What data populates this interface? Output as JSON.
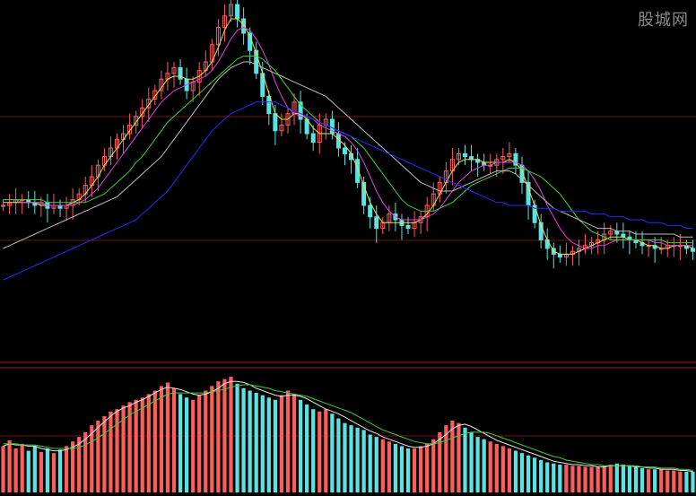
{
  "watermark": "股城网",
  "colors": {
    "background": "#000000",
    "up": "#ff5c5c",
    "down": "#59e3e3",
    "ma_white": "#e8e8e8",
    "ma_yellow": "#e8e04a",
    "ma_magenta": "#e040e0",
    "ma_green": "#3fcf3f",
    "ma_gray": "#bdbdbd",
    "ma_blue": "#2a2aff",
    "grid": "#7a1010"
  },
  "chart_data": [
    {
      "type": "line",
      "panel": "price",
      "grid": true,
      "n": 110,
      "series": [
        {
          "key": "close",
          "color": "#e8e8e8",
          "values": [
            30,
            31,
            32,
            32,
            31,
            30,
            31,
            29,
            30,
            29,
            30,
            32,
            34,
            37,
            40,
            44,
            47,
            50,
            53,
            55,
            58,
            61,
            64,
            67,
            70,
            74,
            76,
            78,
            74,
            70,
            73,
            77,
            80,
            86,
            92,
            96,
            100,
            95,
            90,
            84,
            76,
            68,
            62,
            56,
            58,
            62,
            66,
            60,
            55,
            52,
            58,
            60,
            55,
            50,
            48,
            46,
            38,
            30,
            26,
            22,
            24,
            27,
            25,
            23,
            22,
            24,
            26,
            30,
            34,
            38,
            42,
            46,
            48,
            47,
            46,
            45,
            44,
            44,
            46,
            47,
            48,
            44,
            38,
            30,
            24,
            18,
            15,
            13,
            12,
            13,
            14,
            15,
            16,
            17,
            18,
            20,
            21,
            20,
            19,
            18,
            17,
            16,
            16,
            15,
            15,
            16,
            16,
            16,
            15,
            14
          ]
        },
        {
          "key": "ma5",
          "color": "#e8e04a",
          "values": [
            31,
            31,
            31,
            31,
            31,
            31,
            30,
            30,
            30,
            30,
            30,
            31,
            32,
            34,
            37,
            40,
            44,
            47,
            50,
            53,
            56,
            59,
            62,
            65,
            68,
            71,
            74,
            75,
            75,
            74,
            74,
            75,
            77,
            80,
            85,
            91,
            95,
            95,
            93,
            89,
            83,
            76,
            69,
            62,
            60,
            60,
            62,
            62,
            60,
            57,
            55,
            55,
            55,
            53,
            51,
            48,
            43,
            37,
            31,
            27,
            24,
            24,
            24,
            24,
            24,
            24,
            25,
            27,
            30,
            34,
            38,
            42,
            45,
            46,
            46,
            46,
            45,
            45,
            45,
            45,
            46,
            45,
            42,
            36,
            30,
            23,
            18,
            14,
            13,
            13,
            13,
            14,
            15,
            16,
            17,
            18,
            19,
            19,
            19,
            18,
            18,
            17,
            16,
            16,
            15,
            15,
            16,
            16,
            16,
            15
          ]
        },
        {
          "key": "ma10",
          "color": "#e040e0",
          "values": [
            32,
            32,
            32,
            31,
            31,
            31,
            31,
            30,
            30,
            30,
            30,
            30,
            31,
            32,
            34,
            36,
            39,
            42,
            45,
            48,
            51,
            54,
            57,
            60,
            63,
            66,
            68,
            70,
            71,
            72,
            73,
            74,
            75,
            77,
            80,
            84,
            88,
            91,
            92,
            91,
            88,
            84,
            79,
            73,
            68,
            64,
            62,
            61,
            61,
            60,
            58,
            57,
            56,
            55,
            54,
            52,
            49,
            45,
            40,
            35,
            31,
            28,
            26,
            25,
            25,
            25,
            25,
            26,
            27,
            29,
            32,
            35,
            38,
            40,
            42,
            43,
            44,
            44,
            45,
            45,
            45,
            45,
            44,
            42,
            39,
            35,
            30,
            26,
            22,
            19,
            17,
            16,
            15,
            15,
            16,
            16,
            17,
            18,
            18,
            18,
            18,
            18,
            18,
            17,
            17,
            16,
            16,
            16,
            16,
            16
          ]
        },
        {
          "key": "ma20",
          "color": "#3fcf3f",
          "values": [
            32,
            32,
            32,
            32,
            32,
            32,
            32,
            31,
            31,
            31,
            31,
            31,
            31,
            31,
            32,
            33,
            34,
            36,
            38,
            40,
            42,
            45,
            47,
            50,
            53,
            56,
            59,
            61,
            63,
            65,
            67,
            69,
            71,
            73,
            75,
            77,
            79,
            81,
            82,
            82,
            82,
            81,
            79,
            77,
            74,
            71,
            68,
            65,
            63,
            61,
            59,
            58,
            57,
            56,
            55,
            54,
            52,
            50,
            47,
            44,
            41,
            38,
            35,
            32,
            30,
            29,
            28,
            28,
            28,
            29,
            30,
            31,
            33,
            35,
            37,
            38,
            39,
            40,
            41,
            42,
            43,
            43,
            43,
            42,
            41,
            40,
            38,
            36,
            34,
            31,
            28,
            25,
            23,
            21,
            20,
            19,
            18,
            18,
            18,
            18,
            18,
            18,
            18,
            18,
            18,
            17,
            17,
            17,
            17,
            17
          ]
        },
        {
          "key": "ma60",
          "color": "#bdbdbd",
          "values": [
            15,
            16,
            17,
            18,
            19,
            20,
            21,
            22,
            23,
            24,
            25,
            26,
            27,
            28,
            29,
            30,
            31,
            32,
            33,
            35,
            37,
            39,
            41,
            43,
            45,
            47,
            50,
            53,
            56,
            59,
            62,
            65,
            68,
            71,
            74,
            76,
            78,
            79,
            80,
            80,
            79,
            78,
            77,
            76,
            75,
            74,
            73,
            72,
            71,
            70,
            69,
            68,
            66,
            64,
            62,
            60,
            58,
            56,
            54,
            52,
            50,
            48,
            46,
            44,
            42,
            40,
            38,
            37,
            36,
            35,
            35,
            35,
            36,
            37,
            38,
            39,
            40,
            41,
            42,
            42,
            42,
            41,
            39,
            37,
            35,
            33,
            31,
            29,
            28,
            27,
            26,
            25,
            24,
            23,
            22,
            22,
            22,
            21,
            21,
            21,
            20,
            20,
            20,
            20,
            20,
            20,
            20,
            19,
            19,
            19
          ]
        },
        {
          "key": "ma120",
          "color": "#2a2aff",
          "values": [
            4,
            5,
            6,
            7,
            8,
            9,
            10,
            11,
            12,
            13,
            14,
            15,
            16,
            17,
            18,
            19,
            20,
            21,
            22,
            23,
            24,
            25,
            27,
            29,
            31,
            33,
            35,
            38,
            41,
            44,
            47,
            50,
            53,
            56,
            58,
            60,
            62,
            63,
            64,
            65,
            66,
            66,
            66,
            66,
            65,
            64,
            63,
            62,
            61,
            60,
            59,
            58,
            57,
            56,
            55,
            54,
            53,
            52,
            51,
            50,
            49,
            48,
            47,
            46,
            45,
            44,
            43,
            42,
            41,
            40,
            39,
            38,
            37,
            36,
            35,
            34,
            33,
            32,
            31,
            31,
            30,
            30,
            30,
            30,
            29,
            29,
            29,
            29,
            28,
            28,
            28,
            28,
            28,
            27,
            27,
            27,
            26,
            26,
            26,
            25,
            25,
            25,
            24,
            24,
            24,
            23,
            23,
            23,
            22,
            22
          ]
        }
      ]
    },
    {
      "type": "bar",
      "panel": "volume",
      "grid": false,
      "n": 110,
      "values": [
        40,
        45,
        38,
        42,
        36,
        40,
        35,
        38,
        34,
        37,
        40,
        44,
        48,
        52,
        58,
        62,
        66,
        70,
        72,
        75,
        78,
        80,
        82,
        85,
        88,
        92,
        95,
        90,
        85,
        82,
        80,
        84,
        88,
        92,
        96,
        98,
        100,
        94,
        90,
        88,
        86,
        84,
        82,
        80,
        84,
        88,
        85,
        80,
        76,
        72,
        70,
        72,
        68,
        64,
        60,
        58,
        56,
        54,
        50,
        48,
        46,
        44,
        42,
        40,
        38,
        38,
        40,
        42,
        46,
        52,
        58,
        62,
        60,
        56,
        52,
        48,
        46,
        44,
        42,
        40,
        38,
        36,
        34,
        32,
        30,
        28,
        26,
        25,
        24,
        24,
        23,
        23,
        22,
        22,
        22,
        23,
        24,
        25,
        24,
        23,
        22,
        21,
        20,
        20,
        20,
        19,
        19,
        18,
        18,
        18
      ],
      "ma5": [
        40,
        42,
        41,
        41,
        40,
        40,
        38,
        37,
        36,
        36,
        37,
        39,
        42,
        46,
        51,
        56,
        61,
        66,
        70,
        73,
        75,
        78,
        80,
        83,
        86,
        89,
        91,
        90,
        89,
        87,
        85,
        84,
        85,
        87,
        90,
        94,
        96,
        96,
        95,
        93,
        90,
        88,
        86,
        84,
        83,
        84,
        84,
        83,
        81,
        78,
        75,
        72,
        70,
        68,
        65,
        62,
        59,
        56,
        53,
        51,
        48,
        46,
        44,
        42,
        40,
        39,
        39,
        40,
        42,
        46,
        50,
        55,
        58,
        59,
        57,
        54,
        51,
        48,
        45,
        43,
        41,
        39,
        37,
        35,
        33,
        31,
        29,
        27,
        26,
        25,
        24,
        24,
        23,
        23,
        22,
        22,
        23,
        23,
        23,
        23,
        22,
        22,
        21,
        21,
        20,
        20,
        20,
        19,
        19,
        18
      ],
      "ma10": [
        42,
        42,
        42,
        41,
        41,
        41,
        40,
        39,
        38,
        38,
        38,
        38,
        39,
        41,
        44,
        47,
        51,
        55,
        59,
        63,
        67,
        70,
        73,
        76,
        79,
        82,
        85,
        86,
        86,
        86,
        86,
        86,
        86,
        87,
        88,
        89,
        91,
        92,
        93,
        93,
        92,
        91,
        90,
        88,
        87,
        86,
        85,
        84,
        83,
        81,
        79,
        77,
        75,
        73,
        71,
        69,
        66,
        63,
        60,
        57,
        54,
        52,
        50,
        48,
        46,
        44,
        43,
        42,
        42,
        43,
        45,
        47,
        49,
        51,
        52,
        52,
        52,
        51,
        49,
        47,
        45,
        43,
        41,
        39,
        37,
        35,
        33,
        31,
        30,
        28,
        27,
        26,
        25,
        24,
        24,
        23,
        23,
        23,
        23,
        23,
        23,
        22,
        22,
        22,
        21,
        21,
        21,
        20,
        20,
        19
      ]
    }
  ]
}
